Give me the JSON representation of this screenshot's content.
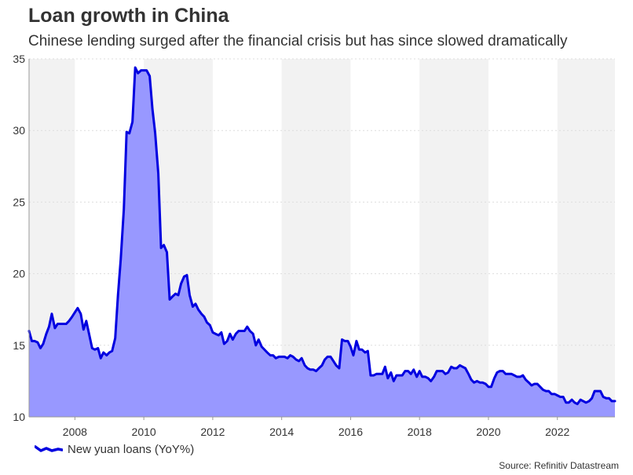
{
  "title": "Loan growth in China",
  "subtitle": "Chinese lending surged after the financial crisis but has since slowed dramatically",
  "source": "Source: Refinitiv Datastream",
  "colors": {
    "line": "#0000e0",
    "fill": "#9898ff",
    "band": "#f2f2f2",
    "grid": "#dddddd"
  },
  "chart_data": {
    "type": "area",
    "title": "Loan growth in China",
    "xlabel": "",
    "ylabel": "",
    "ylim": [
      10,
      35
    ],
    "xlim": [
      2006.67,
      2023.67
    ],
    "yticks": [
      10,
      15,
      20,
      25,
      30,
      35
    ],
    "xticks": [
      2008,
      2010,
      2012,
      2014,
      2016,
      2018,
      2020,
      2022
    ],
    "bands": [
      [
        2006.67,
        2008
      ],
      [
        2010,
        2012
      ],
      [
        2014,
        2016
      ],
      [
        2018,
        2020
      ],
      [
        2022,
        2023.67
      ]
    ],
    "legend": "bottom-left",
    "series": [
      {
        "name": "New yuan loans (YoY%)",
        "points": [
          [
            2006.67,
            16.0
          ],
          [
            2006.75,
            15.3
          ],
          [
            2006.83,
            15.3
          ],
          [
            2006.92,
            15.2
          ],
          [
            2007.0,
            14.8
          ],
          [
            2007.08,
            15.1
          ],
          [
            2007.17,
            15.8
          ],
          [
            2007.25,
            16.3
          ],
          [
            2007.33,
            17.2
          ],
          [
            2007.42,
            16.2
          ],
          [
            2007.5,
            16.5
          ],
          [
            2007.58,
            16.5
          ],
          [
            2007.67,
            16.5
          ],
          [
            2007.75,
            16.5
          ],
          [
            2007.83,
            16.7
          ],
          [
            2007.92,
            17.0
          ],
          [
            2008.0,
            17.3
          ],
          [
            2008.08,
            17.6
          ],
          [
            2008.17,
            17.2
          ],
          [
            2008.25,
            16.1
          ],
          [
            2008.33,
            16.7
          ],
          [
            2008.42,
            15.7
          ],
          [
            2008.5,
            14.8
          ],
          [
            2008.58,
            14.7
          ],
          [
            2008.67,
            14.8
          ],
          [
            2008.75,
            14.1
          ],
          [
            2008.83,
            14.5
          ],
          [
            2008.92,
            14.3
          ],
          [
            2009.0,
            14.5
          ],
          [
            2009.08,
            14.6
          ],
          [
            2009.17,
            15.5
          ],
          [
            2009.25,
            18.5
          ],
          [
            2009.33,
            21.0
          ],
          [
            2009.42,
            24.5
          ],
          [
            2009.5,
            29.9
          ],
          [
            2009.58,
            29.8
          ],
          [
            2009.67,
            30.6
          ],
          [
            2009.75,
            34.4
          ],
          [
            2009.83,
            34.0
          ],
          [
            2009.92,
            34.2
          ],
          [
            2010.0,
            34.2
          ],
          [
            2010.08,
            34.2
          ],
          [
            2010.17,
            33.8
          ],
          [
            2010.25,
            31.5
          ],
          [
            2010.33,
            29.8
          ],
          [
            2010.42,
            27.0
          ],
          [
            2010.5,
            21.8
          ],
          [
            2010.58,
            22.0
          ],
          [
            2010.67,
            21.5
          ],
          [
            2010.75,
            18.2
          ],
          [
            2010.83,
            18.4
          ],
          [
            2010.92,
            18.6
          ],
          [
            2011.0,
            18.5
          ],
          [
            2011.08,
            19.3
          ],
          [
            2011.17,
            19.8
          ],
          [
            2011.25,
            19.9
          ],
          [
            2011.33,
            18.5
          ],
          [
            2011.42,
            17.7
          ],
          [
            2011.5,
            17.9
          ],
          [
            2011.58,
            17.5
          ],
          [
            2011.67,
            17.2
          ],
          [
            2011.75,
            17.0
          ],
          [
            2011.83,
            16.6
          ],
          [
            2011.92,
            16.4
          ],
          [
            2012.0,
            15.9
          ],
          [
            2012.08,
            15.8
          ],
          [
            2012.17,
            15.7
          ],
          [
            2012.25,
            15.9
          ],
          [
            2012.33,
            15.1
          ],
          [
            2012.42,
            15.3
          ],
          [
            2012.5,
            15.8
          ],
          [
            2012.58,
            15.4
          ],
          [
            2012.67,
            15.8
          ],
          [
            2012.75,
            16.0
          ],
          [
            2012.83,
            16.0
          ],
          [
            2012.92,
            16.0
          ],
          [
            2013.0,
            16.3
          ],
          [
            2013.08,
            16.0
          ],
          [
            2013.17,
            15.8
          ],
          [
            2013.25,
            15.0
          ],
          [
            2013.33,
            15.4
          ],
          [
            2013.42,
            14.9
          ],
          [
            2013.5,
            14.7
          ],
          [
            2013.58,
            14.5
          ],
          [
            2013.67,
            14.3
          ],
          [
            2013.75,
            14.3
          ],
          [
            2013.83,
            14.1
          ],
          [
            2013.92,
            14.2
          ],
          [
            2014.0,
            14.2
          ],
          [
            2014.08,
            14.2
          ],
          [
            2014.17,
            14.1
          ],
          [
            2014.25,
            14.3
          ],
          [
            2014.33,
            14.2
          ],
          [
            2014.42,
            14.0
          ],
          [
            2014.5,
            13.9
          ],
          [
            2014.58,
            14.1
          ],
          [
            2014.67,
            13.6
          ],
          [
            2014.75,
            13.4
          ],
          [
            2014.83,
            13.3
          ],
          [
            2014.92,
            13.3
          ],
          [
            2015.0,
            13.2
          ],
          [
            2015.08,
            13.4
          ],
          [
            2015.17,
            13.6
          ],
          [
            2015.25,
            14.0
          ],
          [
            2015.33,
            14.2
          ],
          [
            2015.42,
            14.2
          ],
          [
            2015.5,
            13.9
          ],
          [
            2015.58,
            13.6
          ],
          [
            2015.67,
            13.4
          ],
          [
            2015.75,
            15.4
          ],
          [
            2015.83,
            15.3
          ],
          [
            2015.92,
            15.3
          ],
          [
            2016.0,
            14.9
          ],
          [
            2016.08,
            14.3
          ],
          [
            2016.17,
            15.3
          ],
          [
            2016.25,
            14.7
          ],
          [
            2016.33,
            14.7
          ],
          [
            2016.42,
            14.5
          ],
          [
            2016.5,
            14.6
          ],
          [
            2016.58,
            12.9
          ],
          [
            2016.67,
            12.9
          ],
          [
            2016.75,
            13.0
          ],
          [
            2016.83,
            13.0
          ],
          [
            2016.92,
            13.0
          ],
          [
            2017.0,
            13.5
          ],
          [
            2017.08,
            12.7
          ],
          [
            2017.17,
            13.1
          ],
          [
            2017.25,
            12.5
          ],
          [
            2017.33,
            12.9
          ],
          [
            2017.42,
            12.9
          ],
          [
            2017.5,
            12.9
          ],
          [
            2017.58,
            13.2
          ],
          [
            2017.67,
            13.2
          ],
          [
            2017.75,
            13.0
          ],
          [
            2017.83,
            13.3
          ],
          [
            2017.92,
            12.8
          ],
          [
            2018.0,
            13.2
          ],
          [
            2018.08,
            12.8
          ],
          [
            2018.17,
            12.8
          ],
          [
            2018.25,
            12.7
          ],
          [
            2018.33,
            12.5
          ],
          [
            2018.42,
            12.8
          ],
          [
            2018.5,
            13.2
          ],
          [
            2018.58,
            13.2
          ],
          [
            2018.67,
            13.2
          ],
          [
            2018.75,
            13.0
          ],
          [
            2018.83,
            13.1
          ],
          [
            2018.92,
            13.5
          ],
          [
            2019.0,
            13.4
          ],
          [
            2019.08,
            13.4
          ],
          [
            2019.17,
            13.6
          ],
          [
            2019.25,
            13.5
          ],
          [
            2019.33,
            13.4
          ],
          [
            2019.42,
            13.0
          ],
          [
            2019.5,
            12.6
          ],
          [
            2019.58,
            12.4
          ],
          [
            2019.67,
            12.5
          ],
          [
            2019.75,
            12.4
          ],
          [
            2019.83,
            12.4
          ],
          [
            2019.92,
            12.3
          ],
          [
            2020.0,
            12.1
          ],
          [
            2020.08,
            12.1
          ],
          [
            2020.17,
            12.7
          ],
          [
            2020.25,
            13.1
          ],
          [
            2020.33,
            13.2
          ],
          [
            2020.42,
            13.2
          ],
          [
            2020.5,
            13.0
          ],
          [
            2020.58,
            13.0
          ],
          [
            2020.67,
            13.0
          ],
          [
            2020.75,
            12.9
          ],
          [
            2020.83,
            12.8
          ],
          [
            2020.92,
            12.8
          ],
          [
            2021.0,
            12.9
          ],
          [
            2021.08,
            12.6
          ],
          [
            2021.17,
            12.4
          ],
          [
            2021.25,
            12.2
          ],
          [
            2021.33,
            12.3
          ],
          [
            2021.42,
            12.3
          ],
          [
            2021.5,
            12.1
          ],
          [
            2021.58,
            11.9
          ],
          [
            2021.67,
            11.8
          ],
          [
            2021.75,
            11.8
          ],
          [
            2021.83,
            11.6
          ],
          [
            2021.92,
            11.6
          ],
          [
            2022.0,
            11.5
          ],
          [
            2022.08,
            11.4
          ],
          [
            2022.17,
            11.4
          ],
          [
            2022.25,
            11.0
          ],
          [
            2022.33,
            11.0
          ],
          [
            2022.42,
            11.2
          ],
          [
            2022.5,
            11.0
          ],
          [
            2022.58,
            10.9
          ],
          [
            2022.67,
            11.2
          ],
          [
            2022.75,
            11.1
          ],
          [
            2022.83,
            11.0
          ],
          [
            2022.92,
            11.1
          ],
          [
            2023.0,
            11.3
          ],
          [
            2023.08,
            11.8
          ],
          [
            2023.17,
            11.8
          ],
          [
            2023.25,
            11.8
          ],
          [
            2023.33,
            11.4
          ],
          [
            2023.42,
            11.3
          ],
          [
            2023.5,
            11.3
          ],
          [
            2023.58,
            11.1
          ],
          [
            2023.67,
            11.1
          ]
        ]
      }
    ]
  }
}
